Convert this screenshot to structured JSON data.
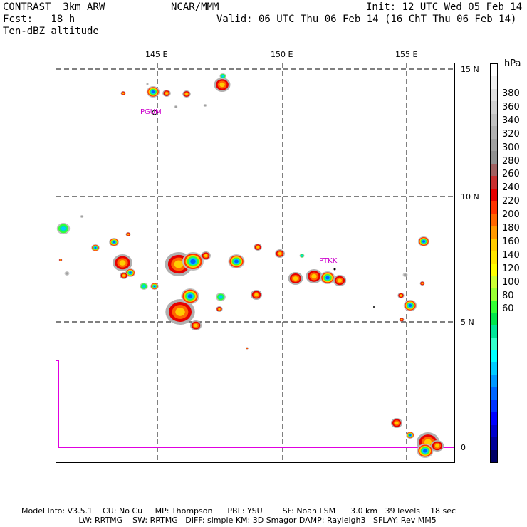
{
  "header": {
    "title_left": "CONTRAST  3km ARW",
    "fcst": "Fcst:   18 h",
    "field": "Ten-dBZ altitude",
    "center": "NCAR/MMM",
    "init": "Init: 12 UTC Wed 05 Feb 14",
    "valid": "Valid: 06 UTC Thu 06 Feb 14 (16 ChT Thu 06 Feb 14)"
  },
  "map": {
    "lon_labels": [
      "145 E",
      "150 E",
      "155 E"
    ],
    "lat_labels": [
      "15 N",
      "10 N",
      "5 N",
      "0"
    ],
    "stations": [
      "PGUM",
      "PTKK"
    ],
    "boundary_color": "#e000e0"
  },
  "colorbar": {
    "unit": "hPa",
    "labels": [
      "380",
      "360",
      "340",
      "320",
      "300",
      "280",
      "260",
      "240",
      "220",
      "200",
      "180",
      "160",
      "140",
      "120",
      "100",
      "80",
      "60"
    ],
    "colors": [
      "#ffffff",
      "#f0f0f0",
      "#e0e0e0",
      "#d0d0d0",
      "#c0c0c0",
      "#b0b0b0",
      "#a0a0a0",
      "#909090",
      "#a06060",
      "#c83030",
      "#e60000",
      "#ff3300",
      "#ff6600",
      "#ff9900",
      "#ffcc00",
      "#ffe600",
      "#ffff00",
      "#ccff33",
      "#99ff33",
      "#33ff33",
      "#00e64c",
      "#00e699",
      "#33ffcc",
      "#00ffff",
      "#00ccff",
      "#0099ff",
      "#0066ff",
      "#0033ff",
      "#0000ff",
      "#0000cc",
      "#000099",
      "#000066"
    ]
  },
  "footer": {
    "line1": "Model Info: V3.5.1    CU: No Cu     MP: Thompson      PBL: YSU        SF: Noah LSM      3.0 km   39 levels    18 sec",
    "line2": "                       LW: RRTMG    SW: RRTMG   DIFF: simple KM: 3D Smagor DAMP: Rayleigh3   SFLAY: Rev MM5"
  }
}
